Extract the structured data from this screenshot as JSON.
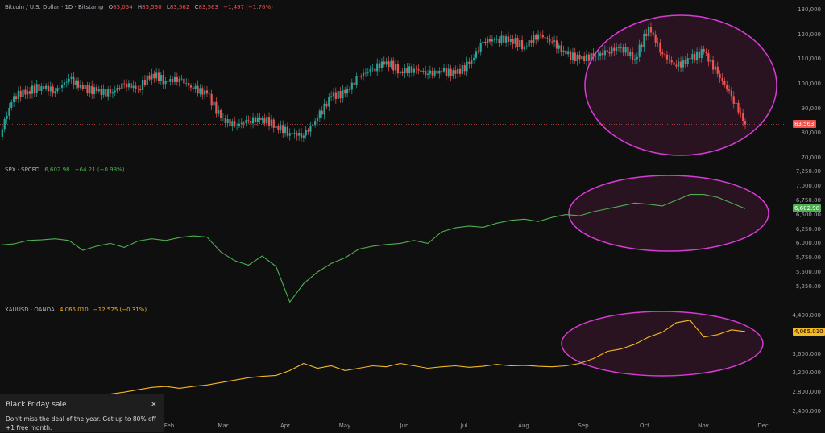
{
  "colors": {
    "up": "#26a69a",
    "down": "#ef5350",
    "spx": "#4caf50",
    "gold": "#f5b921",
    "ellipse": "#d63bd6",
    "ellipse_fill": "#2a1320"
  },
  "btc": {
    "symbol": "Bitcoin / U.S. Dollar · 1D · Bitstamp",
    "o_label": "O",
    "o": "85,054",
    "h_label": "H",
    "h": "85,530",
    "l_label": "L",
    "l": "83,562",
    "c_label": "C",
    "c": "83,563",
    "change": "−1,497 (−1.76%)",
    "last_tag": "83,563",
    "ticks": [
      "130,000",
      "120,000",
      "110,000",
      "100,000",
      "90,000",
      "80,000",
      "70,000"
    ]
  },
  "spx": {
    "symbol": "SPX · SPCFD",
    "value": "6,602.98",
    "change": "+64.21 (+0.98%)",
    "last_tag": "6,602.98",
    "ticks": [
      "7,250.00",
      "7,000.00",
      "6,750.00",
      "6,500.00",
      "6,250.00",
      "6,000.00",
      "5,750.00",
      "5,500.00",
      "5,250.00"
    ]
  },
  "gold": {
    "symbol": "XAUUSD · OANDA",
    "value": "4,065.010",
    "change": "−12.525 (−0.31%)",
    "last_tag": "4,065.010",
    "ticks": [
      "4,400.000",
      "3,600.000",
      "3,200.000",
      "2,800.000",
      "2,400.000"
    ]
  },
  "time_axis": [
    "Feb",
    "Mar",
    "Apr",
    "May",
    "Jun",
    "Jul",
    "Aug",
    "Sep",
    "Oct",
    "Nov",
    "Dec"
  ],
  "popup": {
    "title": "Black Friday sale",
    "body": "Don't miss the deal of the year. Get up to 80% off +1 free month.",
    "close": "×"
  },
  "chart_data": [
    {
      "type": "candlestick",
      "interval": "weekly-sampled",
      "start": "2024-11-07",
      "values": [
        80,
        95,
        97,
        99,
        97,
        102,
        98,
        97,
        96,
        100,
        98,
        104,
        101,
        102,
        98,
        96,
        86,
        83,
        85,
        86,
        83,
        80,
        79,
        86,
        95,
        96,
        103,
        106,
        109,
        105,
        106,
        104,
        105,
        104,
        108,
        117,
        118,
        118,
        115,
        120,
        117,
        112,
        110,
        111,
        113,
        115,
        110,
        123,
        112,
        107,
        110,
        113,
        104,
        95,
        83.563
      ],
      "unit": "thousand USD",
      "ylim": [
        70,
        130
      ]
    },
    {
      "type": "line",
      "start": "2024-11-07",
      "values": [
        5970,
        5990,
        6050,
        6060,
        6080,
        6050,
        5880,
        5950,
        6000,
        5930,
        6040,
        6080,
        6050,
        6100,
        6130,
        6110,
        5850,
        5700,
        5620,
        5780,
        5600,
        4980,
        5300,
        5500,
        5650,
        5750,
        5900,
        5950,
        5980,
        6000,
        6050,
        6000,
        6200,
        6270,
        6300,
        6280,
        6350,
        6400,
        6420,
        6380,
        6450,
        6500,
        6480,
        6550,
        6600,
        6650,
        6700,
        6680,
        6650,
        6750,
        6850,
        6850,
        6800,
        6700,
        6602.98
      ],
      "ylim": [
        5000,
        7350
      ]
    },
    {
      "type": "line",
      "start": "2024-11-07",
      "values": [
        2620,
        2650,
        2640,
        2700,
        2650,
        2620,
        2680,
        2720,
        2760,
        2800,
        2850,
        2900,
        2920,
        2880,
        2920,
        2950,
        3000,
        3050,
        3100,
        3130,
        3150,
        3250,
        3400,
        3300,
        3350,
        3250,
        3300,
        3350,
        3330,
        3400,
        3350,
        3300,
        3330,
        3350,
        3320,
        3340,
        3380,
        3350,
        3360,
        3340,
        3330,
        3350,
        3400,
        3500,
        3650,
        3700,
        3800,
        3950,
        4050,
        4250,
        4300,
        3950,
        4000,
        4100,
        4065.01
      ],
      "ylim": [
        2300,
        4500
      ]
    }
  ]
}
